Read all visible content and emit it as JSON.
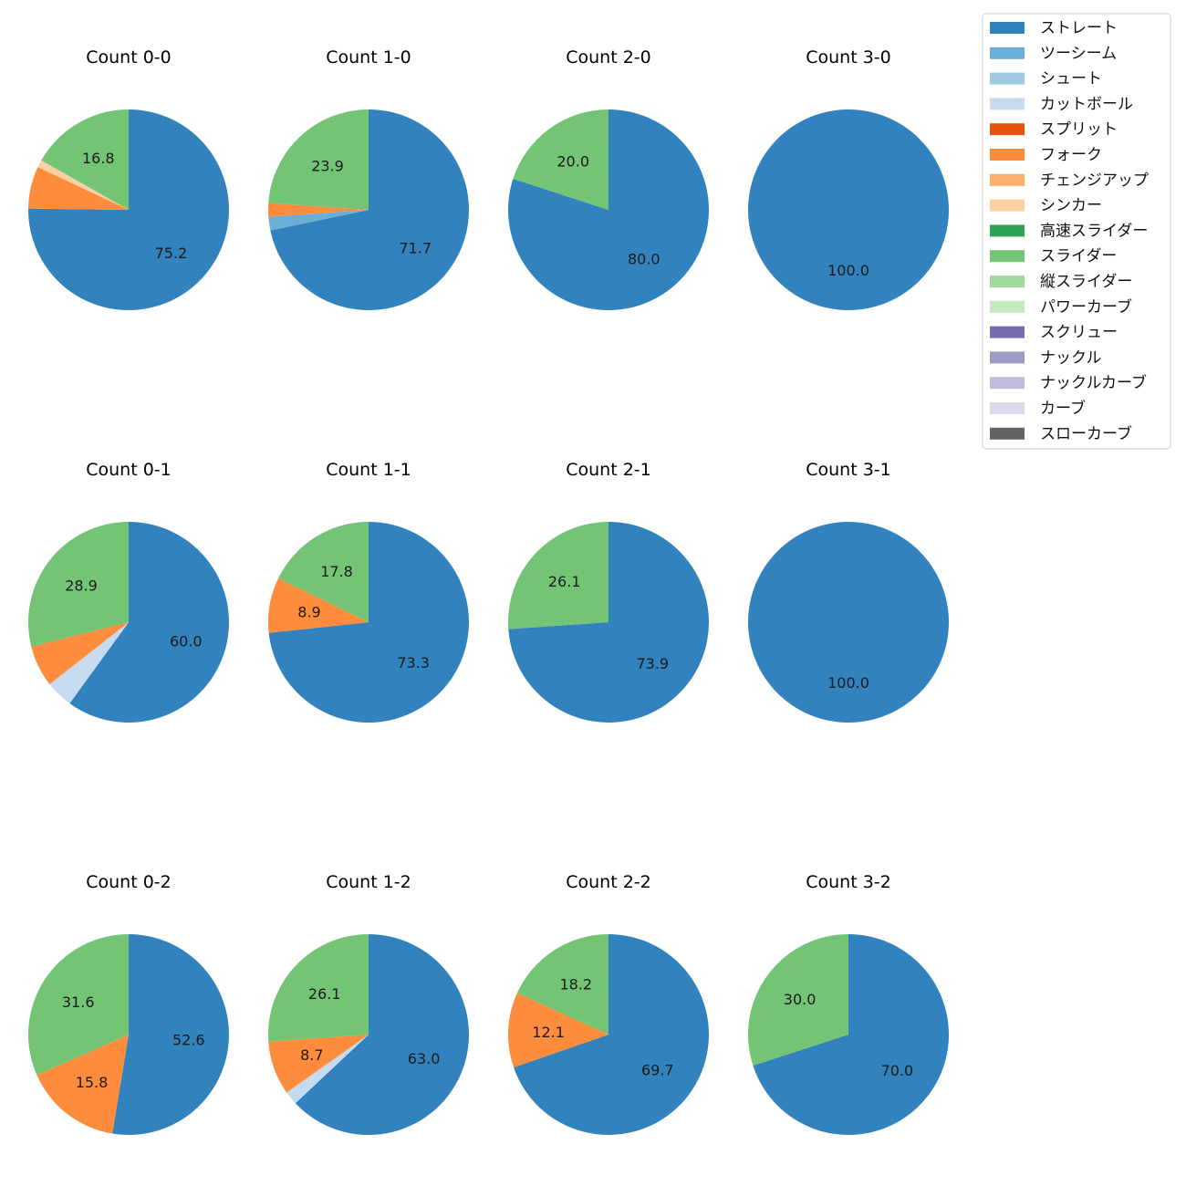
{
  "chart_data": {
    "type": "pie",
    "legend": {
      "placement": "top-right",
      "entries": [
        {
          "name": "ストレート",
          "color": "#3182bd"
        },
        {
          "name": "ツーシーム",
          "color": "#6baed6"
        },
        {
          "name": "シュート",
          "color": "#9ecae1"
        },
        {
          "name": "カットボール",
          "color": "#c6dbef"
        },
        {
          "name": "スプリット",
          "color": "#e6550d"
        },
        {
          "name": "フォーク",
          "color": "#fd8d3c"
        },
        {
          "name": "チェンジアップ",
          "color": "#fdae6b"
        },
        {
          "name": "シンカー",
          "color": "#fdd0a2"
        },
        {
          "name": "高速スライダー",
          "color": "#31a354"
        },
        {
          "name": "スライダー",
          "color": "#74c476"
        },
        {
          "name": "縦スライダー",
          "color": "#a1d99b"
        },
        {
          "name": "パワーカーブ",
          "color": "#c7e9c0"
        },
        {
          "name": "スクリュー",
          "color": "#756bb1"
        },
        {
          "name": "ナックル",
          "color": "#9e9ac8"
        },
        {
          "name": "ナックルカーブ",
          "color": "#bcbddc"
        },
        {
          "name": "カーブ",
          "color": "#dadaeb"
        },
        {
          "name": "スローカーブ",
          "color": "#636363"
        }
      ]
    },
    "pies": [
      {
        "title": "Count 0-0",
        "slices": [
          {
            "pitch": "ストレート",
            "value": 75.2,
            "label": "75.2"
          },
          {
            "pitch": "フォーク",
            "value": 6.8,
            "label": ""
          },
          {
            "pitch": "シンカー",
            "value": 1.2,
            "label": ""
          },
          {
            "pitch": "スライダー",
            "value": 16.8,
            "label": "16.8"
          }
        ]
      },
      {
        "title": "Count 1-0",
        "slices": [
          {
            "pitch": "ストレート",
            "value": 71.7,
            "label": "71.7"
          },
          {
            "pitch": "ツーシーム",
            "value": 2.2,
            "label": ""
          },
          {
            "pitch": "フォーク",
            "value": 2.2,
            "label": ""
          },
          {
            "pitch": "スライダー",
            "value": 23.9,
            "label": "23.9"
          }
        ]
      },
      {
        "title": "Count 2-0",
        "slices": [
          {
            "pitch": "ストレート",
            "value": 80.0,
            "label": "80.0"
          },
          {
            "pitch": "スライダー",
            "value": 20.0,
            "label": "20.0"
          }
        ]
      },
      {
        "title": "Count 3-0",
        "slices": [
          {
            "pitch": "ストレート",
            "value": 100.0,
            "label": "100.0"
          }
        ]
      },
      {
        "title": "Count 0-1",
        "slices": [
          {
            "pitch": "ストレート",
            "value": 60.0,
            "label": "60.0"
          },
          {
            "pitch": "カットボール",
            "value": 4.4,
            "label": ""
          },
          {
            "pitch": "フォーク",
            "value": 6.7,
            "label": ""
          },
          {
            "pitch": "スライダー",
            "value": 28.9,
            "label": "28.9"
          }
        ]
      },
      {
        "title": "Count 1-1",
        "slices": [
          {
            "pitch": "ストレート",
            "value": 73.3,
            "label": "73.3"
          },
          {
            "pitch": "フォーク",
            "value": 8.9,
            "label": "8.9"
          },
          {
            "pitch": "スライダー",
            "value": 17.8,
            "label": "17.8"
          }
        ]
      },
      {
        "title": "Count 2-1",
        "slices": [
          {
            "pitch": "ストレート",
            "value": 73.9,
            "label": "73.9"
          },
          {
            "pitch": "スライダー",
            "value": 26.1,
            "label": "26.1"
          }
        ]
      },
      {
        "title": "Count 3-1",
        "slices": [
          {
            "pitch": "ストレート",
            "value": 100.0,
            "label": "100.0"
          }
        ]
      },
      {
        "title": "Count 0-2",
        "slices": [
          {
            "pitch": "ストレート",
            "value": 52.6,
            "label": "52.6"
          },
          {
            "pitch": "フォーク",
            "value": 15.8,
            "label": "15.8"
          },
          {
            "pitch": "スライダー",
            "value": 31.6,
            "label": "31.6"
          }
        ]
      },
      {
        "title": "Count 1-2",
        "slices": [
          {
            "pitch": "ストレート",
            "value": 63.0,
            "label": "63.0"
          },
          {
            "pitch": "カットボール",
            "value": 2.2,
            "label": ""
          },
          {
            "pitch": "フォーク",
            "value": 8.7,
            "label": "8.7"
          },
          {
            "pitch": "スライダー",
            "value": 26.1,
            "label": "26.1"
          }
        ]
      },
      {
        "title": "Count 2-2",
        "slices": [
          {
            "pitch": "ストレート",
            "value": 69.7,
            "label": "69.7"
          },
          {
            "pitch": "フォーク",
            "value": 12.1,
            "label": "12.1"
          },
          {
            "pitch": "スライダー",
            "value": 18.2,
            "label": "18.2"
          }
        ]
      },
      {
        "title": "Count 3-2",
        "slices": [
          {
            "pitch": "ストレート",
            "value": 70.0,
            "label": "70.0"
          },
          {
            "pitch": "スライダー",
            "value": 30.0,
            "label": "30.0"
          }
        ]
      }
    ]
  }
}
